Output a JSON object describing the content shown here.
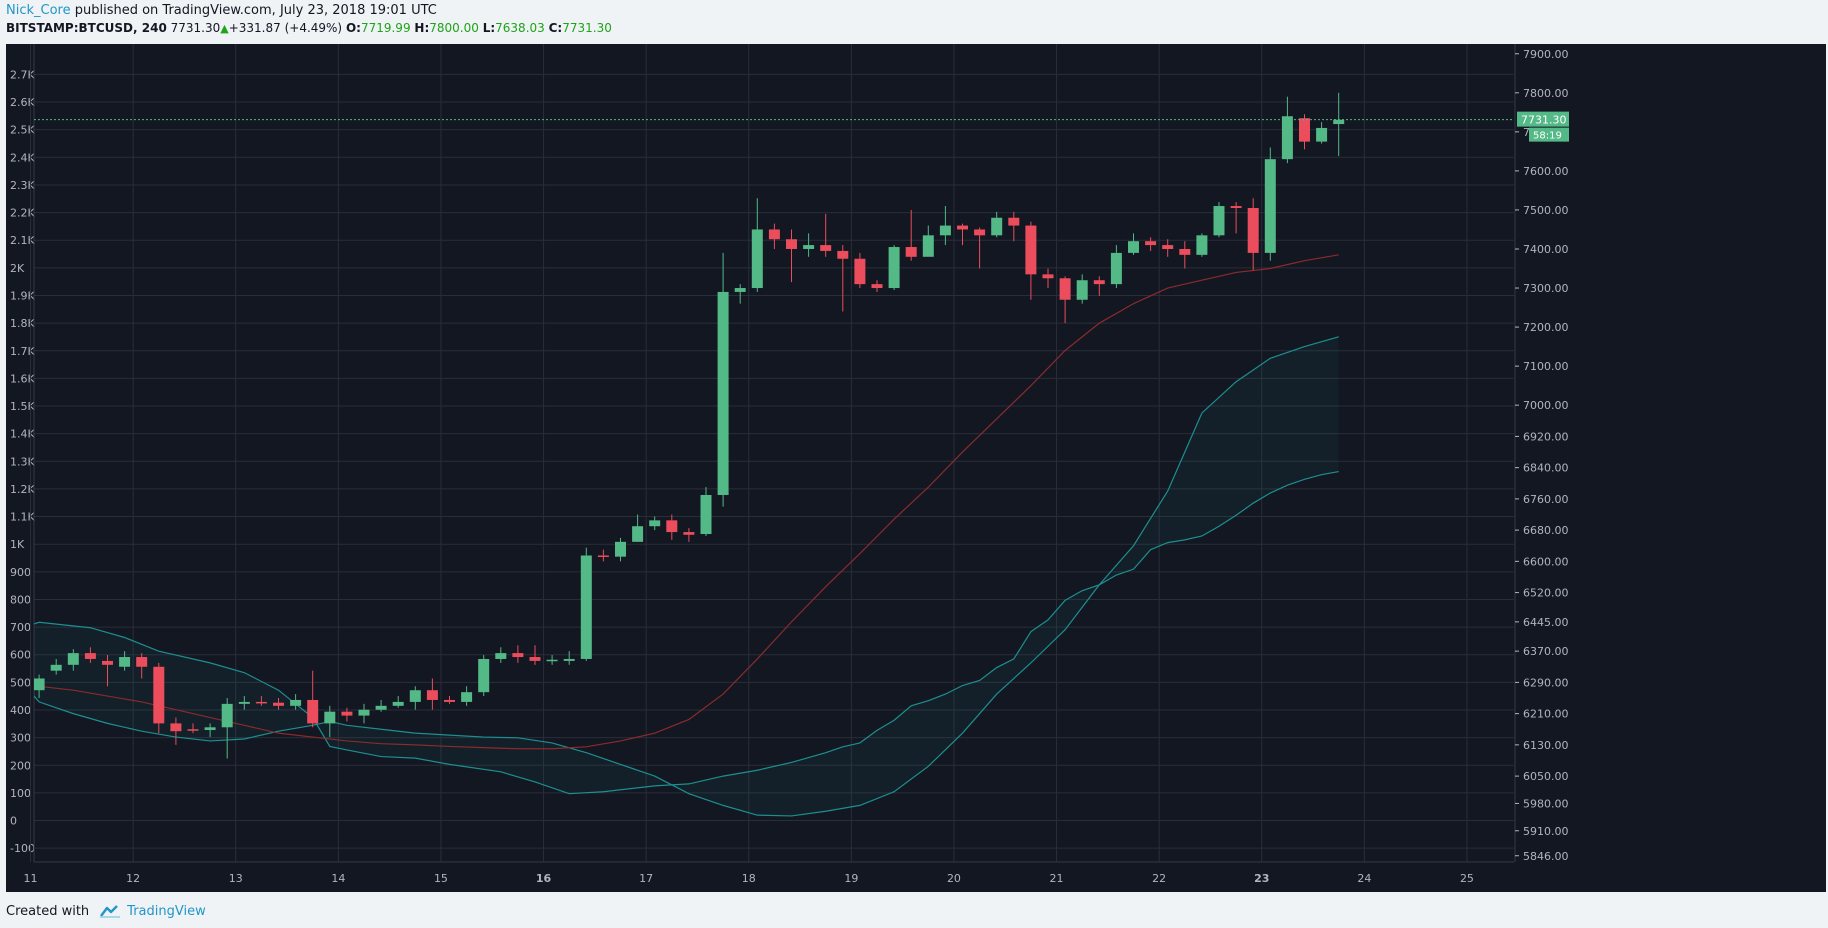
{
  "header": {
    "author": "Nick_Core",
    "published_text": " published on TradingView.com, July 23, 2018 19:01 UTC",
    "symbol": "BITSTAMP:BTCUSD, 240",
    "last": "7731.30",
    "change": "+331.87 (+4.49%)",
    "o_label": "O:",
    "o_value": "7719.99",
    "h_label": "H:",
    "h_value": "7800.00",
    "l_label": "L:",
    "l_value": "7638.03",
    "c_label": "C:",
    "c_value": "7731.30"
  },
  "footer": {
    "created_with": "Created with",
    "brand": "TradingView"
  },
  "colors": {
    "background": "#131722",
    "grid": "#2a2e39",
    "text": "#b2b5be",
    "up": "#53b987",
    "down": "#eb4d5c",
    "bands": "#1d8f8f",
    "basis": "#8b2b2b",
    "price_label": "#53b987"
  },
  "chart_data": {
    "type": "candlestick",
    "symbol": "BITSTAMP:BTCUSD",
    "interval": "240",
    "x_ticks": [
      {
        "label": "11",
        "bar": 0.5
      },
      {
        "label": "12",
        "bar": 6.5
      },
      {
        "label": "13",
        "bar": 12.5
      },
      {
        "label": "14",
        "bar": 18.5
      },
      {
        "label": "15",
        "bar": 24.5
      },
      {
        "label": "16",
        "bar": 30.5,
        "bold": true
      },
      {
        "label": "17",
        "bar": 36.5
      },
      {
        "label": "18",
        "bar": 42.5
      },
      {
        "label": "19",
        "bar": 48.5
      },
      {
        "label": "20",
        "bar": 54.5
      },
      {
        "label": "21",
        "bar": 60.5
      },
      {
        "label": "22",
        "bar": 66.5
      },
      {
        "label": "23",
        "bar": 72.5,
        "bold": true
      },
      {
        "label": "24",
        "bar": 78.5
      },
      {
        "label": "25",
        "bar": 84.5
      }
    ],
    "right_axis_ticks": [
      "7900.00",
      "7800.00",
      "7700.00",
      "7600.00",
      "7500.00",
      "7400.00",
      "7300.00",
      "7200.00",
      "7100.00",
      "7000.00",
      "6920.00",
      "6840.00",
      "6760.00",
      "6680.00",
      "6600.00",
      "6520.00",
      "6445.00",
      "6370.00",
      "6290.00",
      "6210.00",
      "6130.00",
      "6050.00",
      "5980.00",
      "5910.00",
      "5846.00"
    ],
    "left_axis_ticks": [
      "2.7K",
      "2.6K",
      "2.5K",
      "2.4K",
      "2.3K",
      "2.2K",
      "2.1K",
      "2K",
      "1.9K",
      "1.8K",
      "1.7K",
      "1.6K",
      "1.5K",
      "1.4K",
      "1.3K",
      "1.2K",
      "1.1K",
      "1K",
      "900",
      "800",
      "700",
      "600",
      "500",
      "400",
      "300",
      "200",
      "100",
      "0",
      "-100"
    ],
    "last_price_label": "7731.30",
    "countdown_label": "58:19",
    "candles": [
      [
        6340,
        6260,
        6370,
        6240
      ],
      [
        6270,
        6300,
        6310,
        6250
      ],
      [
        6320,
        6335,
        6350,
        6310
      ],
      [
        6335,
        6365,
        6375,
        6320
      ],
      [
        6365,
        6350,
        6380,
        6340
      ],
      [
        6345,
        6335,
        6360,
        6280
      ],
      [
        6330,
        6355,
        6370,
        6320
      ],
      [
        6355,
        6330,
        6365,
        6300
      ],
      [
        6330,
        6185,
        6340,
        6160
      ],
      [
        6185,
        6165,
        6200,
        6130
      ],
      [
        6170,
        6168,
        6185,
        6160
      ],
      [
        6168,
        6175,
        6185,
        6150
      ],
      [
        6175,
        6235,
        6250,
        6095
      ],
      [
        6235,
        6240,
        6255,
        6220
      ],
      [
        6240,
        6238,
        6255,
        6230
      ],
      [
        6238,
        6230,
        6250,
        6220
      ],
      [
        6230,
        6245,
        6260,
        6220
      ],
      [
        6245,
        6185,
        6320,
        6175
      ],
      [
        6185,
        6215,
        6230,
        6150
      ],
      [
        6215,
        6205,
        6225,
        6190
      ],
      [
        6205,
        6220,
        6235,
        6185
      ],
      [
        6220,
        6230,
        6245,
        6215
      ],
      [
        6230,
        6240,
        6255,
        6225
      ],
      [
        6240,
        6270,
        6280,
        6220
      ],
      [
        6270,
        6245,
        6300,
        6220
      ],
      [
        6245,
        6240,
        6255,
        6235
      ],
      [
        6240,
        6265,
        6280,
        6230
      ],
      [
        6265,
        6350,
        6360,
        6255
      ],
      [
        6350,
        6365,
        6380,
        6340
      ],
      [
        6365,
        6355,
        6385,
        6340
      ],
      [
        6355,
        6345,
        6385,
        6335
      ],
      [
        6345,
        6348,
        6360,
        6335
      ],
      [
        6345,
        6350,
        6370,
        6335
      ],
      [
        6350,
        6615,
        6635,
        6345
      ],
      [
        6615,
        6612,
        6630,
        6600
      ],
      [
        6612,
        6650,
        6660,
        6600
      ],
      [
        6650,
        6690,
        6720,
        6650
      ],
      [
        6690,
        6705,
        6715,
        6680
      ],
      [
        6705,
        6675,
        6720,
        6655
      ],
      [
        6675,
        6668,
        6685,
        6650
      ],
      [
        6670,
        6770,
        6790,
        6665
      ],
      [
        6770,
        7290,
        7390,
        6740
      ],
      [
        7290,
        7300,
        7310,
        7260
      ],
      [
        7300,
        7450,
        7530,
        7290
      ],
      [
        7450,
        7425,
        7465,
        7400
      ],
      [
        7425,
        7400,
        7450,
        7315
      ],
      [
        7400,
        7410,
        7440,
        7380
      ],
      [
        7410,
        7395,
        7490,
        7380
      ],
      [
        7395,
        7375,
        7410,
        7240
      ],
      [
        7375,
        7310,
        7390,
        7300
      ],
      [
        7310,
        7300,
        7320,
        7290
      ],
      [
        7300,
        7405,
        7410,
        7295
      ],
      [
        7405,
        7380,
        7500,
        7370
      ],
      [
        7380,
        7435,
        7460,
        7390
      ],
      [
        7435,
        7460,
        7510,
        7410
      ],
      [
        7460,
        7450,
        7465,
        7410
      ],
      [
        7450,
        7435,
        7455,
        7350
      ],
      [
        7435,
        7480,
        7495,
        7430
      ],
      [
        7480,
        7460,
        7495,
        7420
      ],
      [
        7460,
        7335,
        7470,
        7270
      ],
      [
        7335,
        7325,
        7350,
        7300
      ],
      [
        7325,
        7270,
        7330,
        7210
      ],
      [
        7270,
        7320,
        7335,
        7260
      ],
      [
        7320,
        7310,
        7330,
        7280
      ],
      [
        7310,
        7390,
        7410,
        7300
      ],
      [
        7390,
        7420,
        7440,
        7385
      ],
      [
        7420,
        7410,
        7430,
        7395
      ],
      [
        7410,
        7400,
        7425,
        7380
      ],
      [
        7400,
        7385,
        7420,
        7350
      ],
      [
        7385,
        7435,
        7440,
        7380
      ],
      [
        7435,
        7510,
        7520,
        7430
      ],
      [
        7510,
        7505,
        7520,
        7440
      ],
      [
        7505,
        7390,
        7530,
        7345
      ],
      [
        7390,
        7630,
        7660,
        7370
      ],
      [
        7630,
        7740,
        7790,
        7620
      ],
      [
        7735,
        7675,
        7745,
        7655
      ],
      [
        7675,
        7710,
        7725,
        7670
      ],
      [
        7720,
        7731,
        7800,
        7638
      ]
    ],
    "bb_upper": [
      [
        0,
        6430
      ],
      [
        1,
        6444
      ],
      [
        4,
        6430
      ],
      [
        6,
        6405
      ],
      [
        8,
        6370
      ],
      [
        9,
        6360
      ],
      [
        11,
        6340
      ],
      [
        13,
        6315
      ],
      [
        15,
        6270
      ],
      [
        17,
        6200
      ],
      [
        18,
        6126
      ],
      [
        19,
        6117
      ],
      [
        21,
        6100
      ],
      [
        23,
        6096
      ],
      [
        25,
        6080
      ],
      [
        28,
        6061
      ],
      [
        30,
        6035
      ],
      [
        32,
        6005
      ],
      [
        34,
        6010
      ],
      [
        37,
        6025
      ],
      [
        39,
        6030
      ],
      [
        41,
        6050
      ],
      [
        43,
        6065
      ],
      [
        45,
        6085
      ],
      [
        47,
        6110
      ],
      [
        48,
        6125
      ],
      [
        49,
        6135
      ],
      [
        50,
        6167
      ],
      [
        51,
        6193
      ],
      [
        52,
        6230
      ],
      [
        53,
        6243
      ],
      [
        54,
        6260
      ],
      [
        55,
        6282
      ],
      [
        56,
        6295
      ],
      [
        57,
        6328
      ],
      [
        58,
        6350
      ],
      [
        59,
        6420
      ],
      [
        60,
        6450
      ],
      [
        61,
        6500
      ],
      [
        62,
        6525
      ],
      [
        63,
        6540
      ],
      [
        64,
        6565
      ],
      [
        65,
        6580
      ],
      [
        66,
        6630
      ],
      [
        67,
        6648
      ],
      [
        68,
        6655
      ],
      [
        69,
        6665
      ],
      [
        70,
        6690
      ],
      [
        71,
        6718
      ],
      [
        72,
        6749
      ],
      [
        73,
        6775
      ],
      [
        74,
        6795
      ],
      [
        75,
        6810
      ],
      [
        76,
        6822
      ],
      [
        77,
        6830
      ]
    ],
    "bb_basis": [
      [
        0,
        6290
      ],
      [
        1,
        6280
      ],
      [
        3,
        6270
      ],
      [
        5,
        6255
      ],
      [
        7,
        6240
      ],
      [
        9,
        6220
      ],
      [
        11,
        6200
      ],
      [
        13,
        6180
      ],
      [
        15,
        6160
      ],
      [
        17,
        6150
      ],
      [
        19,
        6140
      ],
      [
        21,
        6133
      ],
      [
        23,
        6130
      ],
      [
        25,
        6126
      ],
      [
        27,
        6123
      ],
      [
        29,
        6120
      ],
      [
        31,
        6120
      ],
      [
        33,
        6125
      ],
      [
        35,
        6140
      ],
      [
        37,
        6160
      ],
      [
        39,
        6195
      ],
      [
        41,
        6260
      ],
      [
        43,
        6350
      ],
      [
        45,
        6445
      ],
      [
        47,
        6535
      ],
      [
        49,
        6620
      ],
      [
        51,
        6708
      ],
      [
        53,
        6790
      ],
      [
        55,
        6880
      ],
      [
        57,
        6965
      ],
      [
        59,
        7050
      ],
      [
        61,
        7140
      ],
      [
        63,
        7210
      ],
      [
        65,
        7260
      ],
      [
        67,
        7300
      ],
      [
        69,
        7320
      ],
      [
        71,
        7340
      ],
      [
        73,
        7350
      ],
      [
        75,
        7370
      ],
      [
        77,
        7385
      ]
    ],
    "bb_lower": [
      [
        0,
        6290
      ],
      [
        1,
        6240
      ],
      [
        3,
        6210
      ],
      [
        5,
        6185
      ],
      [
        7,
        6165
      ],
      [
        9,
        6150
      ],
      [
        11,
        6140
      ],
      [
        13,
        6145
      ],
      [
        15,
        6165
      ],
      [
        17,
        6180
      ],
      [
        18,
        6190
      ],
      [
        19,
        6180
      ],
      [
        21,
        6170
      ],
      [
        23,
        6160
      ],
      [
        25,
        6155
      ],
      [
        27,
        6150
      ],
      [
        29,
        6148
      ],
      [
        31,
        6135
      ],
      [
        33,
        6110
      ],
      [
        35,
        6080
      ],
      [
        37,
        6050
      ],
      [
        39,
        6005
      ],
      [
        41,
        5975
      ],
      [
        43,
        5950
      ],
      [
        45,
        5948
      ],
      [
        47,
        5960
      ],
      [
        49,
        5975
      ],
      [
        51,
        6010
      ],
      [
        53,
        6075
      ],
      [
        55,
        6160
      ],
      [
        57,
        6260
      ],
      [
        59,
        6340
      ],
      [
        61,
        6425
      ],
      [
        63,
        6540
      ],
      [
        65,
        6640
      ],
      [
        67,
        6780
      ],
      [
        69,
        6980
      ],
      [
        71,
        7060
      ],
      [
        73,
        7120
      ],
      [
        75,
        7150
      ],
      [
        77,
        7175
      ]
    ],
    "y_range": [
      5830,
      7925
    ],
    "left_axis_range": [
      -150,
      2810
    ]
  }
}
